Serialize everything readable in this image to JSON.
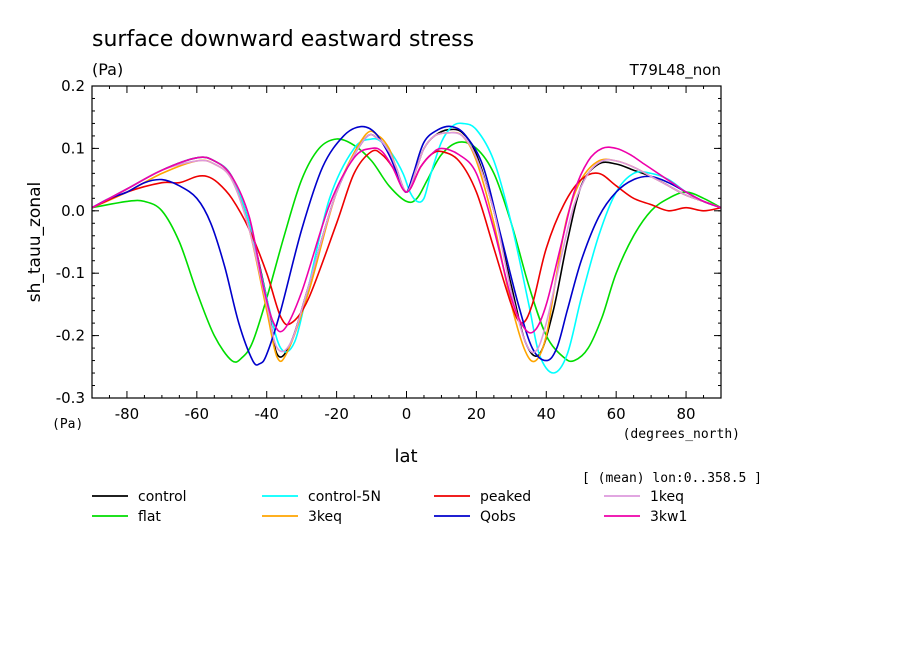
{
  "chart_data": {
    "type": "line",
    "title": "surface downward eastward stress",
    "subtitle": "(Pa)",
    "tag": "T79L48_non",
    "ylabel": "sh_tauu_zonal",
    "yunits": "(Pa)",
    "xlabel": "lat",
    "xunits": "(degrees_north)",
    "note": "[ (mean) lon:0..358.5 ]",
    "xlim": [
      -90,
      90
    ],
    "ylim": [
      -0.3,
      0.2
    ],
    "xticks": [
      "-80",
      "-60",
      "-40",
      "-20",
      "0",
      "20",
      "40",
      "60",
      "80"
    ],
    "xtick_values": [
      -80,
      -60,
      -40,
      -20,
      0,
      20,
      40,
      60,
      80
    ],
    "yticks": [
      "0.2",
      "0.1",
      "0.0",
      "-0.1",
      "-0.2",
      "-0.3"
    ],
    "ytick_values": [
      0.2,
      0.1,
      0.0,
      -0.1,
      -0.2,
      -0.3
    ],
    "series": [
      {
        "name": "control",
        "color": "#000000",
        "x": [
          -90,
          -80,
          -70,
          -60,
          -55,
          -50,
          -45,
          -40,
          -37,
          -33,
          -28,
          -20,
          -12,
          -8,
          -5,
          -3,
          0,
          3,
          5,
          8,
          12,
          16,
          20,
          25,
          30,
          34,
          38,
          42,
          46,
          50,
          55,
          60,
          65,
          70,
          75,
          80,
          85,
          90
        ],
        "y": [
          0.005,
          0.035,
          0.065,
          0.085,
          0.08,
          0.055,
          -0.02,
          -0.14,
          -0.23,
          -0.21,
          -0.12,
          0.03,
          0.115,
          0.115,
          0.095,
          0.07,
          0.03,
          0.07,
          0.1,
          0.12,
          0.13,
          0.125,
          0.09,
          0.0,
          -0.12,
          -0.21,
          -0.23,
          -0.16,
          -0.05,
          0.04,
          0.075,
          0.075,
          0.065,
          0.055,
          0.04,
          0.025,
          0.015,
          0.005
        ]
      },
      {
        "name": "flat",
        "color": "#00dd00",
        "x": [
          -90,
          -80,
          -75,
          -70,
          -65,
          -60,
          -55,
          -50,
          -47,
          -44,
          -40,
          -35,
          -30,
          -25,
          -20,
          -15,
          -10,
          -5,
          0,
          3,
          6,
          10,
          15,
          20,
          25,
          30,
          35,
          40,
          45,
          48,
          52,
          56,
          60,
          65,
          70,
          75,
          80,
          85,
          90
        ],
        "y": [
          0.005,
          0.015,
          0.015,
          0.0,
          -0.05,
          -0.13,
          -0.2,
          -0.24,
          -0.235,
          -0.21,
          -0.14,
          -0.04,
          0.05,
          0.1,
          0.115,
          0.105,
          0.08,
          0.04,
          0.015,
          0.02,
          0.05,
          0.09,
          0.11,
          0.1,
          0.06,
          -0.02,
          -0.12,
          -0.2,
          -0.235,
          -0.24,
          -0.22,
          -0.17,
          -0.1,
          -0.04,
          0.0,
          0.02,
          0.03,
          0.02,
          0.005
        ]
      },
      {
        "name": "control-5N",
        "color": "#00ffff",
        "x": [
          -90,
          -80,
          -70,
          -60,
          -55,
          -50,
          -45,
          -40,
          -36,
          -32,
          -28,
          -22,
          -15,
          -10,
          -7,
          -4,
          -1,
          1,
          3,
          5,
          7,
          10,
          13,
          16,
          20,
          25,
          30,
          35,
          38,
          42,
          46,
          50,
          55,
          60,
          65,
          70,
          75,
          80,
          85,
          90
        ],
        "y": [
          0.005,
          0.035,
          0.065,
          0.085,
          0.08,
          0.055,
          -0.02,
          -0.14,
          -0.22,
          -0.21,
          -0.12,
          0.02,
          0.1,
          0.115,
          0.11,
          0.09,
          0.06,
          0.03,
          0.015,
          0.02,
          0.06,
          0.11,
          0.135,
          0.14,
          0.13,
          0.08,
          -0.02,
          -0.15,
          -0.23,
          -0.26,
          -0.23,
          -0.14,
          -0.04,
          0.03,
          0.06,
          0.06,
          0.05,
          0.03,
          0.015,
          0.005
        ]
      },
      {
        "name": "3keq",
        "color": "#ffa500",
        "x": [
          -90,
          -80,
          -70,
          -60,
          -55,
          -50,
          -45,
          -40,
          -37,
          -34,
          -28,
          -20,
          -12,
          -8,
          -5,
          -3,
          0,
          3,
          5,
          8,
          12,
          16,
          20,
          25,
          30,
          34,
          37,
          40,
          43,
          46,
          50,
          55,
          60,
          65,
          70,
          75,
          80,
          85,
          90
        ],
        "y": [
          0.005,
          0.03,
          0.06,
          0.08,
          0.075,
          0.05,
          -0.03,
          -0.16,
          -0.235,
          -0.225,
          -0.13,
          0.03,
          0.12,
          0.12,
          0.1,
          0.07,
          0.03,
          0.07,
          0.1,
          0.12,
          0.125,
          0.12,
          0.08,
          -0.02,
          -0.15,
          -0.225,
          -0.24,
          -0.2,
          -0.1,
          -0.01,
          0.05,
          0.08,
          0.08,
          0.07,
          0.055,
          0.04,
          0.025,
          0.015,
          0.005
        ]
      },
      {
        "name": "peaked",
        "color": "#ee0000",
        "x": [
          -90,
          -80,
          -70,
          -65,
          -60,
          -57,
          -54,
          -50,
          -45,
          -40,
          -36,
          -33,
          -28,
          -20,
          -15,
          -10,
          -7,
          -4,
          0,
          4,
          7,
          10,
          15,
          20,
          25,
          30,
          33,
          36,
          40,
          45,
          50,
          55,
          60,
          65,
          70,
          75,
          80,
          85,
          90
        ],
        "y": [
          0.005,
          0.03,
          0.045,
          0.045,
          0.055,
          0.055,
          0.045,
          0.02,
          -0.03,
          -0.1,
          -0.17,
          -0.18,
          -0.14,
          -0.02,
          0.06,
          0.095,
          0.09,
          0.07,
          0.03,
          0.07,
          0.09,
          0.095,
          0.08,
          0.03,
          -0.06,
          -0.15,
          -0.18,
          -0.15,
          -0.06,
          0.01,
          0.05,
          0.06,
          0.04,
          0.02,
          0.01,
          0.0,
          0.005,
          0.0,
          0.005
        ]
      },
      {
        "name": "Qobs",
        "color": "#0000cc",
        "x": [
          -90,
          -85,
          -80,
          -75,
          -70,
          -65,
          -60,
          -56,
          -52,
          -48,
          -44,
          -42,
          -40,
          -36,
          -30,
          -24,
          -18,
          -13,
          -9,
          -5,
          -2,
          0,
          2,
          5,
          9,
          13,
          17,
          22,
          27,
          32,
          36,
          40,
          43,
          46,
          50,
          55,
          60,
          65,
          70,
          75,
          80,
          85,
          90
        ],
        "y": [
          0.005,
          0.02,
          0.03,
          0.045,
          0.05,
          0.04,
          0.02,
          -0.02,
          -0.09,
          -0.18,
          -0.24,
          -0.245,
          -0.23,
          -0.16,
          -0.03,
          0.07,
          0.12,
          0.135,
          0.125,
          0.09,
          0.05,
          0.03,
          0.06,
          0.11,
          0.13,
          0.135,
          0.12,
          0.07,
          -0.04,
          -0.15,
          -0.22,
          -0.24,
          -0.22,
          -0.16,
          -0.08,
          -0.01,
          0.03,
          0.05,
          0.055,
          0.045,
          0.03,
          0.015,
          0.005
        ]
      },
      {
        "name": "1keq",
        "color": "#dd99dd",
        "x": [
          -90,
          -80,
          -70,
          -60,
          -55,
          -50,
          -45,
          -40,
          -37,
          -33,
          -28,
          -20,
          -12,
          -8,
          -5,
          -3,
          0,
          3,
          5,
          8,
          12,
          16,
          20,
          25,
          30,
          34,
          37,
          40,
          44,
          48,
          52,
          56,
          60,
          65,
          70,
          75,
          80,
          85,
          90
        ],
        "y": [
          0.005,
          0.035,
          0.065,
          0.08,
          0.075,
          0.05,
          -0.03,
          -0.15,
          -0.22,
          -0.21,
          -0.12,
          0.03,
          0.115,
          0.115,
          0.095,
          0.07,
          0.03,
          0.07,
          0.1,
          0.12,
          0.125,
          0.12,
          0.085,
          0.0,
          -0.13,
          -0.21,
          -0.225,
          -0.18,
          -0.08,
          0.01,
          0.06,
          0.08,
          0.08,
          0.07,
          0.055,
          0.04,
          0.025,
          0.015,
          0.005
        ]
      },
      {
        "name": "3kw1",
        "color": "#ee00aa",
        "x": [
          -90,
          -80,
          -70,
          -60,
          -55,
          -50,
          -45,
          -41,
          -38,
          -35,
          -30,
          -22,
          -15,
          -10,
          -7,
          -4,
          0,
          4,
          7,
          10,
          15,
          20,
          25,
          30,
          34,
          37,
          40,
          44,
          48,
          52,
          56,
          60,
          64,
          68,
          72,
          76,
          80,
          85,
          90
        ],
        "y": [
          0.005,
          0.035,
          0.065,
          0.085,
          0.08,
          0.055,
          -0.01,
          -0.12,
          -0.18,
          -0.19,
          -0.13,
          0.01,
          0.085,
          0.1,
          0.095,
          0.07,
          0.03,
          0.07,
          0.09,
          0.1,
          0.09,
          0.06,
          -0.03,
          -0.14,
          -0.19,
          -0.19,
          -0.15,
          -0.06,
          0.03,
          0.08,
          0.1,
          0.1,
          0.09,
          0.075,
          0.06,
          0.045,
          0.03,
          0.015,
          0.005
        ]
      }
    ]
  }
}
